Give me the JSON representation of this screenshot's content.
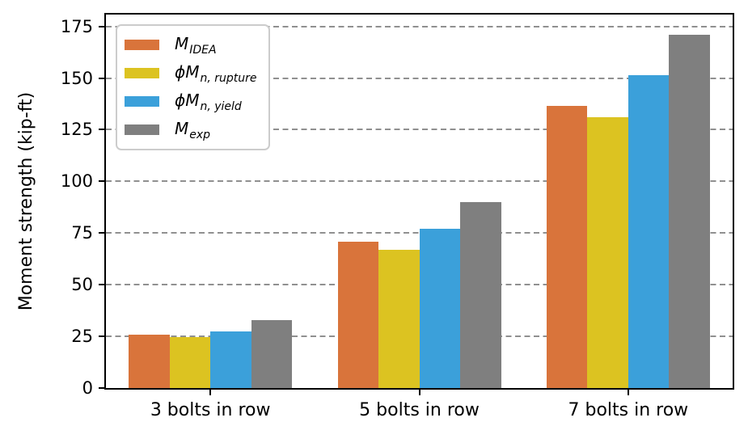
{
  "chart_data": {
    "type": "bar",
    "title": "",
    "xlabel": "",
    "ylabel": "Moment strength (kip-ft)",
    "categories": [
      "3 bolts in row",
      "5 bolts in row",
      "7 bolts in row"
    ],
    "series": [
      {
        "name": "M_IDEA",
        "label_main": "M",
        "label_sub": "IDEA",
        "color": "#d9743b",
        "values": [
          26,
          71,
          136.5
        ]
      },
      {
        "name": "phi_Mn_rupture",
        "label_main": "ϕM",
        "label_sub": "n, rupture",
        "color": "#dcc321",
        "values": [
          24.5,
          67,
          131
        ]
      },
      {
        "name": "phi_Mn_yield",
        "label_main": "ϕM",
        "label_sub": "n, yield",
        "color": "#3ba0da",
        "values": [
          27.5,
          77,
          151.5
        ]
      },
      {
        "name": "M_exp",
        "label_main": "M",
        "label_sub": "exp",
        "color": "#7f7f7f",
        "values": [
          33,
          90,
          171
        ]
      }
    ],
    "yticks": [
      0,
      25,
      50,
      75,
      100,
      125,
      150,
      175
    ],
    "ylim": [
      0,
      180.75
    ],
    "grid": true,
    "grid_color": "#909090",
    "legend_position": "upper left",
    "spine_color": "#000000"
  }
}
